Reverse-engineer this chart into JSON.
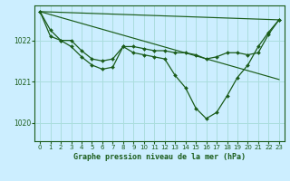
{
  "background_color": "#cceeff",
  "grid_color": "#aadddd",
  "line_color": "#1a5c1a",
  "marker_color": "#1a5c1a",
  "title": "Graphe pression niveau de la mer (hPa)",
  "ylim": [
    1019.55,
    1022.85
  ],
  "xlim": [
    -0.5,
    23.5
  ],
  "yticks": [
    1020,
    1021,
    1022
  ],
  "xticks": [
    0,
    1,
    2,
    3,
    4,
    5,
    6,
    7,
    8,
    9,
    10,
    11,
    12,
    13,
    14,
    15,
    16,
    17,
    18,
    19,
    20,
    21,
    22,
    23
  ],
  "series": [
    {
      "x": [
        0,
        1,
        2,
        3,
        4,
        5,
        6,
        7,
        8,
        9,
        10,
        11,
        12,
        13,
        14,
        15,
        16,
        17,
        18,
        19,
        20,
        21,
        22,
        23
      ],
      "y": [
        1022.7,
        1022.25,
        1022.0,
        1022.0,
        1021.75,
        1021.55,
        1021.5,
        1021.55,
        1021.85,
        1021.85,
        1021.8,
        1021.75,
        1021.75,
        1021.7,
        1021.7,
        1021.65,
        1021.55,
        1021.6,
        1021.7,
        1021.7,
        1021.65,
        1021.7,
        1022.15,
        1022.5
      ],
      "style": "line_marker"
    },
    {
      "x": [
        0,
        1,
        2,
        3,
        4,
        5,
        6,
        7,
        8,
        9,
        10,
        11,
        12,
        13,
        14,
        15,
        16,
        17,
        18,
        19,
        20,
        21,
        22,
        23
      ],
      "y": [
        1022.7,
        1022.1,
        1022.0,
        1021.85,
        1021.6,
        1021.4,
        1021.3,
        1021.35,
        1021.85,
        1021.7,
        1021.65,
        1021.6,
        1021.55,
        1021.15,
        1020.85,
        1020.35,
        1020.1,
        1020.25,
        1020.65,
        1021.1,
        1021.4,
        1021.85,
        1022.2,
        1022.5
      ],
      "style": "line_marker"
    },
    {
      "x": [
        0,
        23
      ],
      "y": [
        1022.7,
        1021.05
      ],
      "style": "line_only"
    },
    {
      "x": [
        0,
        23
      ],
      "y": [
        1022.7,
        1022.5
      ],
      "style": "line_only"
    }
  ]
}
